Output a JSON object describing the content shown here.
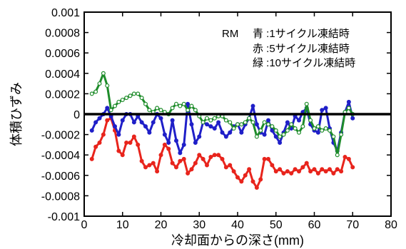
{
  "chart_data": {
    "type": "line",
    "xlabel": "冷却面からの深さ(mm)",
    "ylabel": "体積ひずみ",
    "xlim": [
      0,
      80
    ],
    "ylim": [
      -0.001,
      0.001
    ],
    "x_ticks": [
      "0",
      "10",
      "20",
      "30",
      "40",
      "50",
      "60",
      "70",
      "80"
    ],
    "y_ticks": [
      "0.001",
      "0.0008",
      "0.0006",
      "0.0004",
      "0.0002",
      "0",
      "-0.0002",
      "-0.0004",
      "-0.0006",
      "-0.0008",
      "-0.001"
    ],
    "grid": false,
    "legend_title": "RM",
    "legend_position": "top-right",
    "series": [
      {
        "name": "青 :1サイクル凍結時",
        "color": "#1f1fc8",
        "points": [
          [
            2,
            -0.00016
          ],
          [
            3,
            -8e-05
          ],
          [
            4,
            -4e-05
          ],
          [
            5,
            0.0
          ],
          [
            6,
            6e-05
          ],
          [
            7,
            -2e-05
          ],
          [
            8,
            -0.00012
          ],
          [
            9,
            -0.0002
          ],
          [
            10,
            -6e-05
          ],
          [
            11,
            0.0
          ],
          [
            12,
            0.0
          ],
          [
            13,
            -8e-05
          ],
          [
            14,
            -2e-05
          ],
          [
            15,
            -8e-05
          ],
          [
            16,
            -0.00012
          ],
          [
            17,
            -0.00018
          ],
          [
            18,
            -8e-05
          ],
          [
            19,
            0.0
          ],
          [
            20,
            -4e-05
          ],
          [
            21,
            -0.0002
          ],
          [
            22,
            -0.00028
          ],
          [
            23,
            -6e-05
          ],
          [
            24,
            -0.00026
          ],
          [
            25,
            -0.00038
          ],
          [
            26,
            -0.0003
          ],
          [
            27,
            0.0001
          ],
          [
            28,
            -0.0001
          ],
          [
            29,
            -0.00028
          ],
          [
            30,
            -0.00022
          ],
          [
            31,
            -8e-05
          ],
          [
            32,
            -0.0001
          ],
          [
            33,
            -0.00012
          ],
          [
            34,
            -0.00014
          ],
          [
            35,
            -8e-05
          ],
          [
            36,
            -0.00018
          ],
          [
            37,
            -0.00022
          ],
          [
            38,
            -0.00018
          ],
          [
            39,
            -0.00012
          ],
          [
            40,
            -0.0001
          ],
          [
            41,
            -0.00018
          ],
          [
            42,
            -0.0001
          ],
          [
            43,
            -4e-05
          ],
          [
            44,
            8e-05
          ],
          [
            45,
            -0.0001
          ],
          [
            46,
            -0.00018
          ],
          [
            47,
            -0.0002
          ],
          [
            48,
            -6e-05
          ],
          [
            49,
            -0.00016
          ],
          [
            50,
            -0.00022
          ],
          [
            51,
            -0.00028
          ],
          [
            52,
            -0.00018
          ],
          [
            53,
            -8e-05
          ],
          [
            54,
            -0.00014
          ],
          [
            55,
            -2e-05
          ],
          [
            56,
            -6e-05
          ],
          [
            57,
            2e-05
          ],
          [
            58,
            6e-05
          ],
          [
            59,
            -0.0001
          ],
          [
            60,
            -0.00016
          ],
          [
            61,
            -0.00018
          ],
          [
            62,
            4e-05
          ],
          [
            63,
            6e-05
          ],
          [
            64,
            -0.00014
          ],
          [
            65,
            -0.00028
          ],
          [
            66,
            -0.00036
          ],
          [
            67,
            -0.00018
          ],
          [
            68,
            2e-05
          ],
          [
            69,
            0.00012
          ],
          [
            70,
            -4e-05
          ]
        ]
      },
      {
        "name": "赤 :5サイクル凍結時",
        "color": "#e8241c",
        "points": [
          [
            2,
            -0.00044
          ],
          [
            3,
            -0.00032
          ],
          [
            4,
            -0.00028
          ],
          [
            5,
            -0.0002
          ],
          [
            6,
            -6e-05
          ],
          [
            7,
            -4e-05
          ],
          [
            8,
            -0.00016
          ],
          [
            9,
            -0.00036
          ],
          [
            10,
            -0.0004
          ],
          [
            11,
            -0.00028
          ],
          [
            12,
            -0.00028
          ],
          [
            13,
            -0.00022
          ],
          [
            14,
            -0.0003
          ],
          [
            15,
            -0.00046
          ],
          [
            16,
            -0.00052
          ],
          [
            17,
            -0.0005
          ],
          [
            18,
            -0.00048
          ],
          [
            19,
            -0.00056
          ],
          [
            20,
            -0.0004
          ],
          [
            21,
            -0.0003
          ],
          [
            22,
            -0.00034
          ],
          [
            23,
            -0.00048
          ],
          [
            24,
            -0.00052
          ],
          [
            25,
            -0.00046
          ],
          [
            26,
            -0.00044
          ],
          [
            27,
            -0.00058
          ],
          [
            28,
            -0.00054
          ],
          [
            29,
            -0.00048
          ],
          [
            30,
            -0.0004
          ],
          [
            31,
            -0.00044
          ],
          [
            32,
            -0.0005
          ],
          [
            33,
            -0.00042
          ],
          [
            34,
            -0.0004
          ],
          [
            35,
            -0.0004
          ],
          [
            36,
            -0.00044
          ],
          [
            37,
            -0.00052
          ],
          [
            38,
            -0.0005
          ],
          [
            39,
            -0.00056
          ],
          [
            40,
            -0.00062
          ],
          [
            41,
            -0.00066
          ],
          [
            42,
            -0.0006
          ],
          [
            43,
            -0.00054
          ],
          [
            44,
            -0.00066
          ],
          [
            45,
            -0.00072
          ],
          [
            46,
            -0.00064
          ],
          [
            47,
            -0.00044
          ],
          [
            48,
            -0.00044
          ],
          [
            49,
            -0.0005
          ],
          [
            50,
            -0.00056
          ],
          [
            51,
            -0.00054
          ],
          [
            52,
            -0.00058
          ],
          [
            53,
            -0.00056
          ],
          [
            54,
            -0.00058
          ],
          [
            55,
            -0.00054
          ],
          [
            56,
            -0.00056
          ],
          [
            57,
            -0.00052
          ],
          [
            58,
            -0.00048
          ],
          [
            59,
            -0.00056
          ],
          [
            60,
            -0.00054
          ],
          [
            61,
            -0.00058
          ],
          [
            62,
            -0.00054
          ],
          [
            63,
            -0.00056
          ],
          [
            64,
            -0.00054
          ],
          [
            65,
            -0.00058
          ],
          [
            66,
            -0.00054
          ],
          [
            67,
            -0.00056
          ],
          [
            68,
            -0.00042
          ],
          [
            69,
            -0.00044
          ],
          [
            70,
            -0.00052
          ]
        ]
      },
      {
        "name": "緑 :10サイクル凍結時",
        "color": "#1e8c2a",
        "points": [
          [
            2,
            0.0002
          ],
          [
            3,
            0.00022
          ],
          [
            4,
            0.0003
          ],
          [
            5,
            0.0004
          ],
          [
            6,
            0.00028
          ],
          [
            7,
            4e-05
          ],
          [
            8,
            8e-05
          ],
          [
            9,
            0.00012
          ],
          [
            10,
            0.00014
          ],
          [
            11,
            0.00016
          ],
          [
            12,
            0.00018
          ],
          [
            13,
            0.0002
          ],
          [
            14,
            0.0002
          ],
          [
            15,
            0.00016
          ],
          [
            16,
            0.0001
          ],
          [
            17,
            4e-05
          ],
          [
            18,
            2e-05
          ],
          [
            19,
            6e-05
          ],
          [
            20,
            4e-05
          ],
          [
            21,
            2e-05
          ],
          [
            22,
            0.0
          ],
          [
            23,
            6e-05
          ],
          [
            24,
            0.0001
          ],
          [
            25,
            8e-05
          ],
          [
            26,
            0.0001
          ],
          [
            27,
            4e-05
          ],
          [
            28,
            8e-05
          ],
          [
            29,
            4e-05
          ],
          [
            30,
            -2e-05
          ],
          [
            31,
            -8e-05
          ],
          [
            32,
            -4e-05
          ],
          [
            33,
            -6e-05
          ],
          [
            34,
            -4e-05
          ],
          [
            35,
            -2e-05
          ],
          [
            36,
            -2e-05
          ],
          [
            37,
            -6e-05
          ],
          [
            38,
            -8e-05
          ],
          [
            39,
            -0.00014
          ],
          [
            40,
            -0.0001
          ],
          [
            41,
            -0.0001
          ],
          [
            42,
            -8e-05
          ],
          [
            43,
            -4e-05
          ],
          [
            44,
            -8e-05
          ],
          [
            45,
            -0.00022
          ],
          [
            46,
            -0.00016
          ],
          [
            47,
            -8e-05
          ],
          [
            48,
            -0.0001
          ],
          [
            49,
            -0.00012
          ],
          [
            50,
            -0.00016
          ],
          [
            51,
            -0.00022
          ],
          [
            52,
            -0.0002
          ],
          [
            53,
            -0.00016
          ],
          [
            54,
            -0.0001
          ],
          [
            55,
            -0.00014
          ],
          [
            56,
            -0.00018
          ],
          [
            57,
            -0.00012
          ],
          [
            58,
            0.0001
          ],
          [
            59,
            -6e-05
          ],
          [
            60,
            -0.00014
          ],
          [
            61,
            -0.00012
          ],
          [
            62,
            -0.00016
          ],
          [
            63,
            -0.00014
          ],
          [
            64,
            -0.00016
          ],
          [
            65,
            -0.00022
          ],
          [
            66,
            -0.0004
          ],
          [
            67,
            -0.0002
          ],
          [
            68,
            2e-05
          ],
          [
            69,
            6e-05
          ],
          [
            70,
            0.0
          ]
        ]
      }
    ]
  }
}
